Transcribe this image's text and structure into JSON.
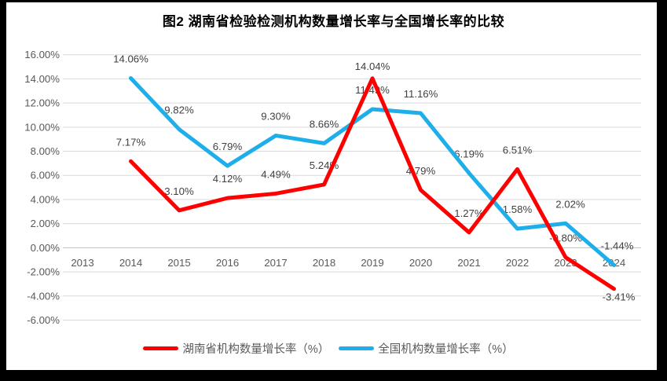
{
  "title": "图2 湖南省检验检测机构数量增长率与全国增长率的比较",
  "frame": {
    "background": "#000000",
    "panel_background": "#ffffff"
  },
  "legend": {
    "items": [
      {
        "label": "湖南省机构数量增长率（%）",
        "color": "#FE0000"
      },
      {
        "label": "全国机构数量增长率（%）",
        "color": "#1EAEE9"
      }
    ]
  },
  "chart_data": {
    "type": "line",
    "title": "图2 湖南省检验检测机构数量增长率与全国增长率的比较",
    "categories": [
      "2013",
      "2014",
      "2015",
      "2016",
      "2017",
      "2018",
      "2019",
      "2020",
      "2021",
      "2022",
      "2023",
      "2024"
    ],
    "series": [
      {
        "name": "湖南省机构数量增长率（%）",
        "color": "#FE0000",
        "values": [
          null,
          7.17,
          3.1,
          4.12,
          4.49,
          5.24,
          14.04,
          4.79,
          1.27,
          6.51,
          -0.8,
          -3.41
        ]
      },
      {
        "name": "全国机构数量增长率（%）",
        "color": "#1EAEE9",
        "values": [
          null,
          14.06,
          9.82,
          6.79,
          9.3,
          8.66,
          11.49,
          11.16,
          6.19,
          1.58,
          2.02,
          -1.44
        ]
      }
    ],
    "ylim": [
      -6,
      16
    ],
    "y_tick_step": 2,
    "y_ticks": [
      "16.00%",
      "14.00%",
      "12.00%",
      "10.00%",
      "8.00%",
      "6.00%",
      "4.00%",
      "2.00%",
      "0.00%",
      "-2.00%",
      "-4.00%",
      "-6.00%"
    ],
    "grid": true,
    "data_labels": true,
    "legend_position": "bottom",
    "label_offsets": {
      "0": {
        "6": {
          "dy": -11
        },
        "11": {
          "dx": 6,
          "dy": 15
        }
      },
      "1": {
        "10": {
          "dx": 6
        },
        "11": {
          "dx": 4
        }
      }
    },
    "colors": {
      "grid": "#D9D9D9",
      "zero_axis": "#BFBFBF",
      "axis_text": "#595959",
      "data_label_text": "#404040",
      "title_text": "#000000"
    }
  }
}
